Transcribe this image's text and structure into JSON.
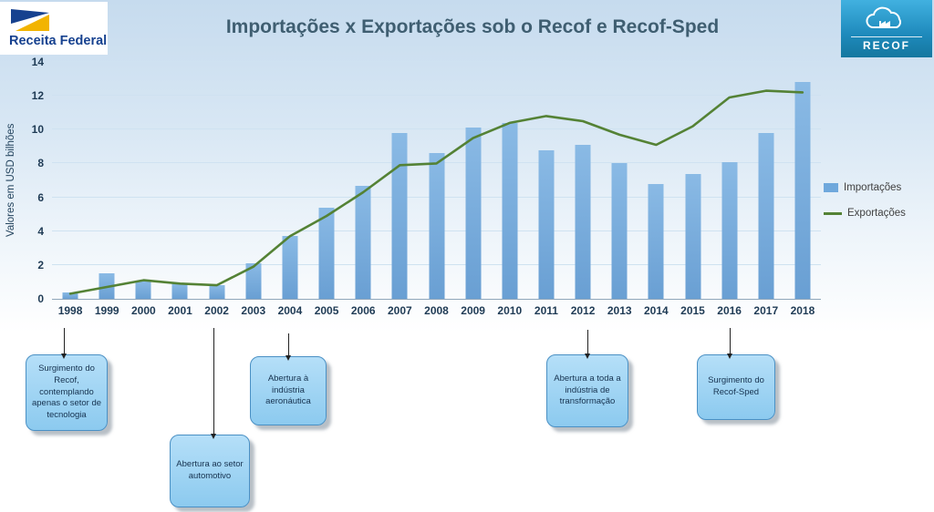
{
  "header": {
    "title": "Importações x Exportações sob o Recof e Recof-Sped",
    "receita_logo_text": "Receita Federal",
    "recof_logo_text": "RECOF"
  },
  "chart_data": {
    "type": "bar",
    "title": "Importações x Exportações sob o Recof e Recof-Sped",
    "xlabel": "",
    "ylabel": "Valores em USD bilhões",
    "ylim": [
      0,
      14
    ],
    "yticks": [
      0,
      2,
      4,
      6,
      8,
      10,
      12,
      14
    ],
    "grid": true,
    "legend_position": "right",
    "categories": [
      "1998",
      "1999",
      "2000",
      "2001",
      "2002",
      "2003",
      "2004",
      "2005",
      "2006",
      "2007",
      "2008",
      "2009",
      "2010",
      "2011",
      "2012",
      "2013",
      "2014",
      "2015",
      "2016",
      "2017",
      "2018"
    ],
    "series": [
      {
        "name": "Importações",
        "type": "bar",
        "color": "#6fa8dc",
        "values": [
          0.4,
          1.5,
          1.1,
          0.9,
          0.8,
          2.1,
          3.7,
          5.4,
          6.7,
          9.8,
          8.6,
          10.1,
          10.4,
          8.8,
          9.1,
          8.0,
          6.8,
          7.4,
          8.1,
          9.8,
          12.8
        ]
      },
      {
        "name": "Exportações",
        "type": "line",
        "color": "#548235",
        "values": [
          0.3,
          0.7,
          1.1,
          0.9,
          0.8,
          1.9,
          3.7,
          4.9,
          6.3,
          7.9,
          8.0,
          9.5,
          10.4,
          10.8,
          10.5,
          9.7,
          9.1,
          10.2,
          11.9,
          12.3,
          12.2
        ]
      }
    ]
  },
  "annotations": [
    {
      "year": "1998",
      "text": "Surgimento do Recof, contemplando apenas o setor de tecnologia"
    },
    {
      "year": "2002",
      "text": "Abertura ao setor automotivo"
    },
    {
      "year": "2004",
      "text": "Abertura à indústria aeronáutica"
    },
    {
      "year": "2012",
      "text": "Abertura a toda a indústria de transformação"
    },
    {
      "year": "2016",
      "text": "Surgimento do Recof-Sped"
    }
  ]
}
